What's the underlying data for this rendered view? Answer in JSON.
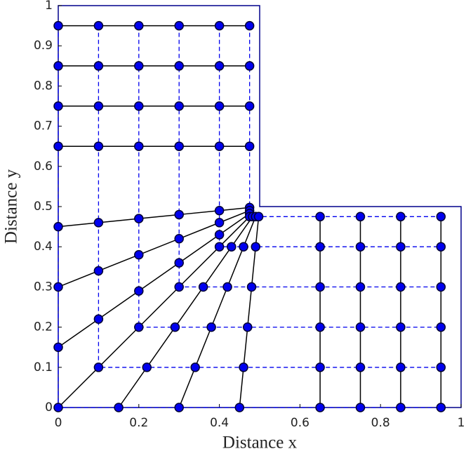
{
  "chart_data": {
    "type": "mesh",
    "xlabel": "Distance x",
    "ylabel": "Distance y",
    "xlim": [
      0,
      1
    ],
    "ylim": [
      0,
      1
    ],
    "xticks": [
      0,
      0.2,
      0.4,
      0.6,
      0.8,
      1
    ],
    "yticks": [
      0,
      0.1,
      0.2,
      0.3,
      0.4,
      0.5,
      0.6,
      0.7,
      0.8,
      0.9,
      1
    ],
    "color": "#0000ee",
    "series": [
      {
        "x": [
          0,
          0,
          0,
          0,
          0,
          0,
          0,
          0,
          0.15,
          0.3,
          0.45,
          0.65,
          0.75,
          0.85,
          0.95
        ],
        "y": [
          0.95,
          0.85,
          0.75,
          0.65,
          0.45,
          0.3,
          0.15,
          0,
          0,
          0,
          0,
          0,
          0,
          0,
          0
        ]
      },
      {
        "x": [
          0.1,
          0.1,
          0.1,
          0.1,
          0.1,
          0.1,
          0.1,
          0.1,
          0.22,
          0.34,
          0.46,
          0.65,
          0.75,
          0.85,
          0.95
        ],
        "y": [
          0.95,
          0.85,
          0.75,
          0.65,
          0.46,
          0.34,
          0.22,
          0.1,
          0.1,
          0.1,
          0.1,
          0.1,
          0.1,
          0.1,
          0.1
        ]
      },
      {
        "x": [
          0.2,
          0.2,
          0.2,
          0.2,
          0.2,
          0.2,
          0.2,
          0.2,
          0.29,
          0.38,
          0.47,
          0.65,
          0.75,
          0.85,
          0.95
        ],
        "y": [
          0.95,
          0.85,
          0.75,
          0.65,
          0.47,
          0.38,
          0.29,
          0.2,
          0.2,
          0.2,
          0.2,
          0.2,
          0.2,
          0.2,
          0.2
        ]
      },
      {
        "x": [
          0.3,
          0.3,
          0.3,
          0.3,
          0.3,
          0.3,
          0.3,
          0.3,
          0.36,
          0.42,
          0.48,
          0.65,
          0.75,
          0.85,
          0.95
        ],
        "y": [
          0.95,
          0.85,
          0.75,
          0.65,
          0.48,
          0.42,
          0.36,
          0.3,
          0.3,
          0.3,
          0.3,
          0.3,
          0.3,
          0.3,
          0.3
        ]
      },
      {
        "x": [
          0.4,
          0.4,
          0.4,
          0.4,
          0.4,
          0.4,
          0.4,
          0.4,
          0.43,
          0.46,
          0.49,
          0.65,
          0.75,
          0.85,
          0.95
        ],
        "y": [
          0.95,
          0.85,
          0.75,
          0.65,
          0.49,
          0.46,
          0.43,
          0.4,
          0.4,
          0.4,
          0.4,
          0.4,
          0.4,
          0.4,
          0.4
        ]
      },
      {
        "x": [
          0.475,
          0.475,
          0.475,
          0.475,
          0.475,
          0.475,
          0.475,
          0.475,
          0.4825,
          0.49,
          0.4975,
          0.65,
          0.75,
          0.85,
          0.95
        ],
        "y": [
          0.95,
          0.85,
          0.75,
          0.65,
          0.4975,
          0.49,
          0.4825,
          0.475,
          0.475,
          0.475,
          0.475,
          0.475,
          0.475,
          0.475,
          0.475
        ]
      }
    ]
  }
}
